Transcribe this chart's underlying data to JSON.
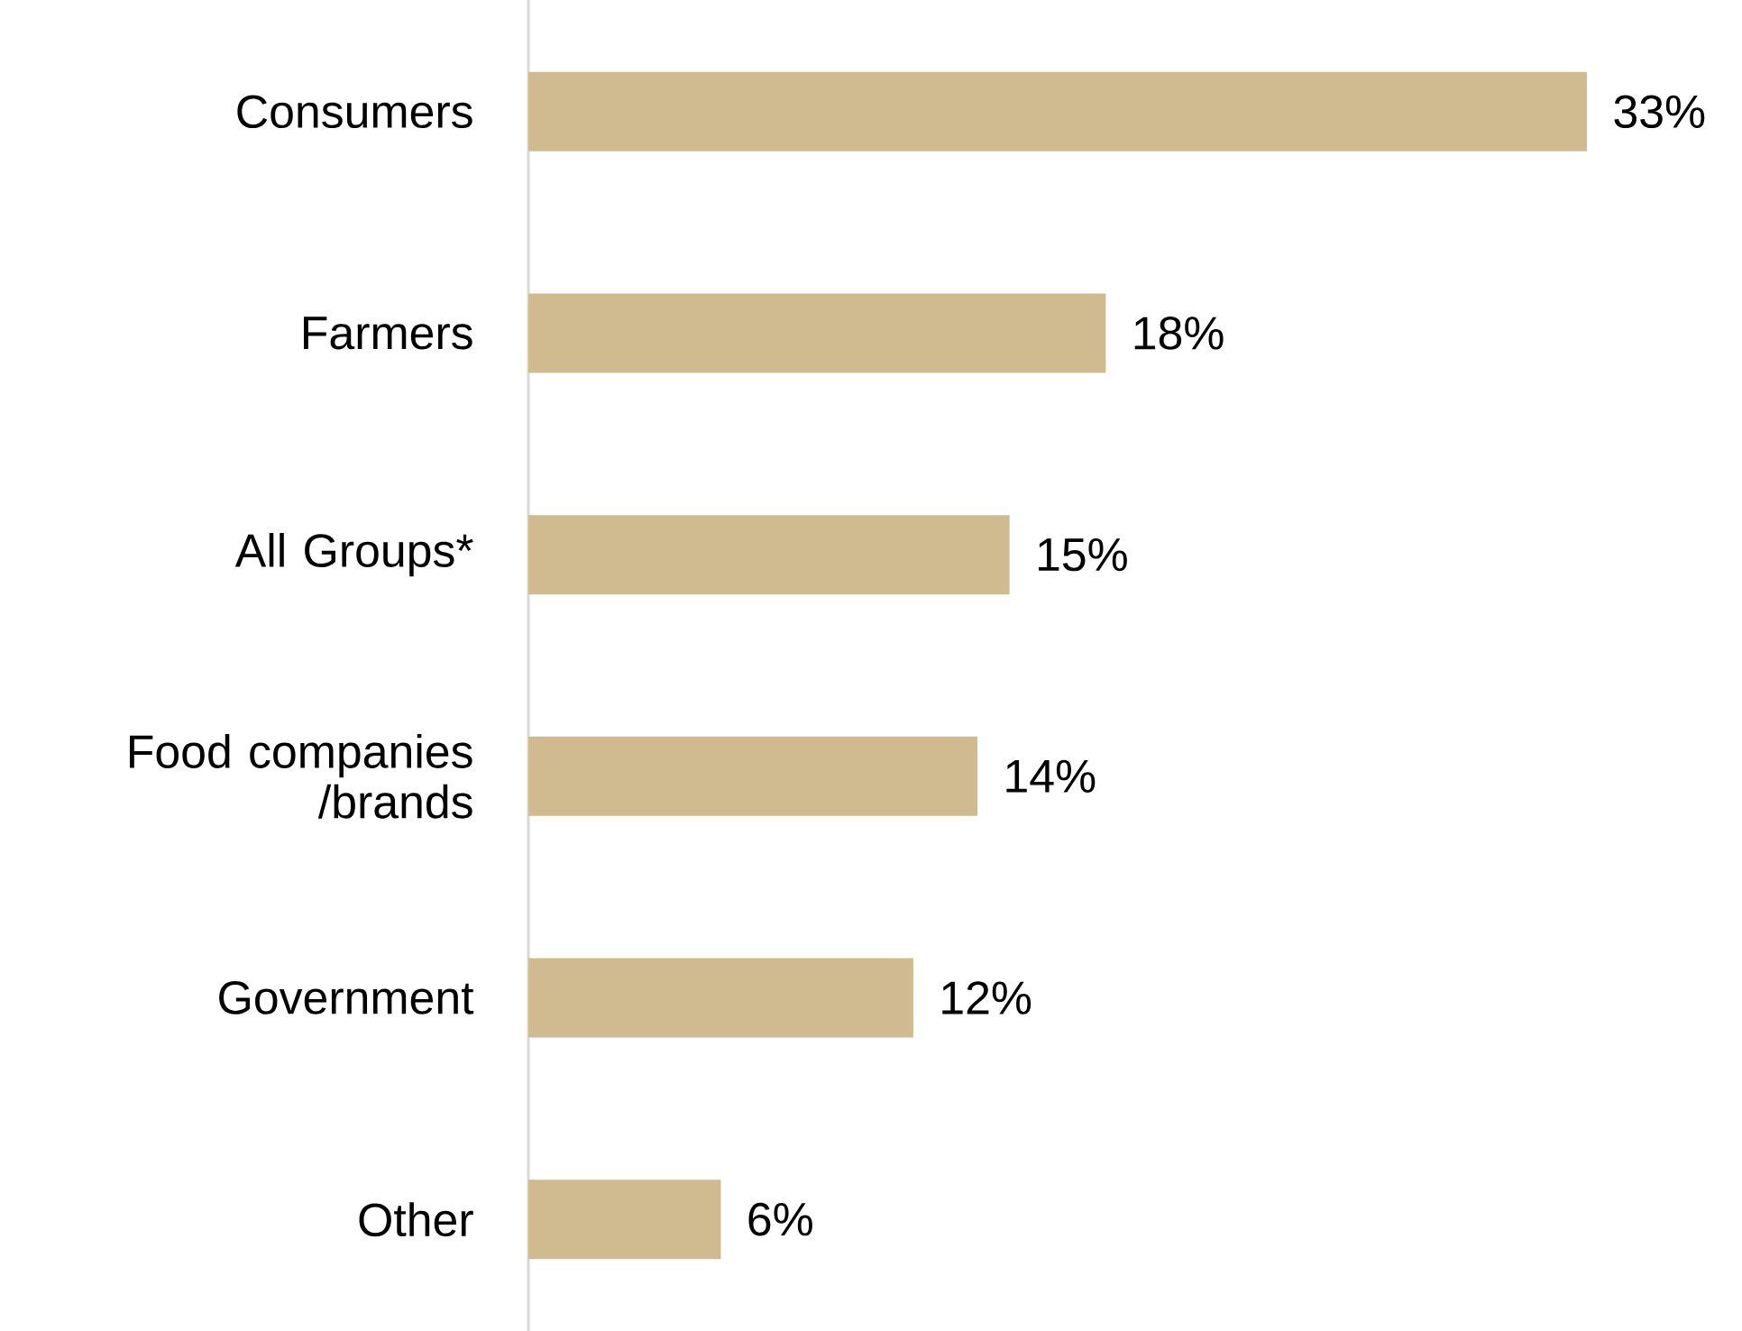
{
  "chart_data": {
    "type": "bar",
    "orientation": "horizontal",
    "categories": [
      "Consumers",
      "Farmers",
      "All Groups*",
      "Food companies /brands",
      "Government",
      "Other"
    ],
    "values": [
      33,
      18,
      15,
      14,
      12,
      6
    ],
    "value_labels": [
      "33%",
      "18%",
      "15%",
      "14%",
      "12%",
      "6%"
    ],
    "color": "#d0bb91"
  }
}
